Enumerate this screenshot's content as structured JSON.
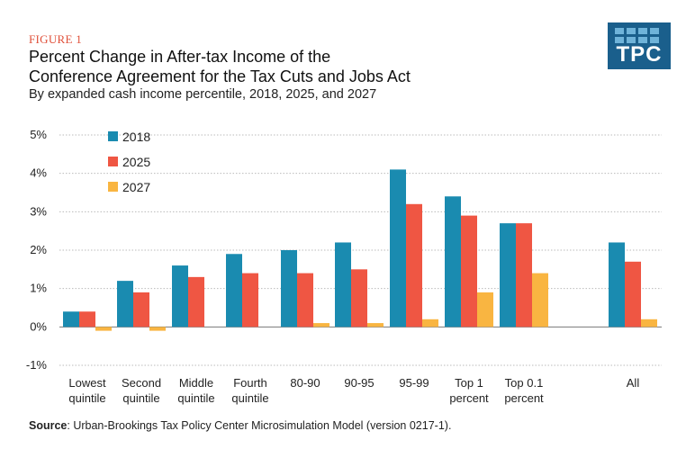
{
  "figure_label": "FIGURE 1",
  "title_line1": "Percent Change in After-tax Income of the",
  "title_line2": "Conference Agreement for the Tax Cuts and Jobs Act",
  "subtitle": "By expanded cash income percentile, 2018, 2025, and 2027",
  "logo_text": "TPC",
  "source_label": "Source",
  "source_text": ": Urban-Brookings Tax Policy Center Microsimulation Model (version 0217-1).",
  "colors": {
    "s2018": "#1a8bb0",
    "s2025": "#ef5643",
    "s2027": "#f9b541",
    "logo": "#1a5f8c"
  },
  "chart_data": {
    "type": "bar",
    "categories": [
      [
        "Lowest",
        "quintile"
      ],
      [
        "Second",
        "quintile"
      ],
      [
        "Middle",
        "quintile"
      ],
      [
        "Fourth",
        "quintile"
      ],
      [
        "80-90"
      ],
      [
        "90-95"
      ],
      [
        "95-99"
      ],
      [
        "Top 1",
        "percent"
      ],
      [
        "Top 0.1",
        "percent"
      ],
      [
        "All"
      ]
    ],
    "series": [
      {
        "name": "2018",
        "values": [
          0.4,
          1.2,
          1.6,
          1.9,
          2.0,
          2.2,
          4.1,
          3.4,
          2.7,
          2.2
        ]
      },
      {
        "name": "2025",
        "values": [
          0.4,
          0.9,
          1.3,
          1.4,
          1.4,
          1.5,
          3.2,
          2.9,
          2.7,
          1.7
        ]
      },
      {
        "name": "2027",
        "values": [
          -0.1,
          -0.1,
          0.0,
          0.0,
          0.1,
          0.1,
          0.2,
          0.9,
          1.4,
          0.2
        ]
      }
    ],
    "yticks": [
      "5%",
      "4%",
      "3%",
      "2%",
      "1%",
      "0%",
      "-1%"
    ],
    "ylim": [
      -1,
      5
    ],
    "grid": true,
    "legend_position": "top-left"
  }
}
